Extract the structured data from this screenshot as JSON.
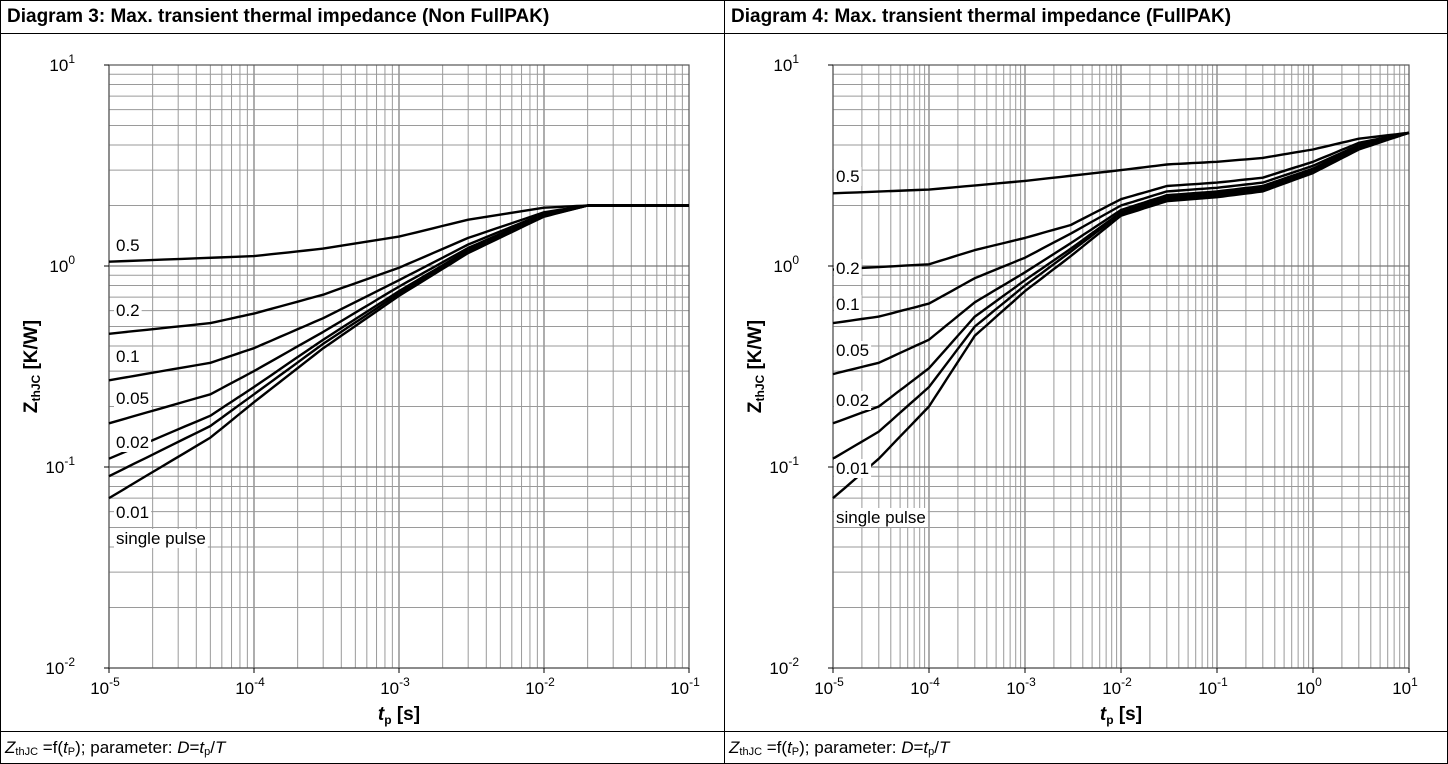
{
  "panels": [
    {
      "title": "Diagram 3: Max. transient thermal impedance (Non FullPAK)",
      "caption": {
        "prefix": "Z",
        "prefix_sub": "thJC",
        "middle": " =f(",
        "var": "t",
        "var_sub": "P",
        "after_var": "); parameter: ",
        "param": "D",
        "eq": "=",
        "num": "t",
        "num_sub": "p",
        "slash": "/",
        "den": "T"
      }
    },
    {
      "title": "Diagram 4: Max. transient thermal impedance (FullPAK)",
      "caption": {
        "prefix": "Z",
        "prefix_sub": "thJC",
        "middle": " =f(",
        "var": "t",
        "var_sub": "P",
        "after_var": "); parameter: ",
        "param": "D",
        "eq": "=",
        "num": "t",
        "num_sub": "p",
        "slash": "/",
        "den": "T"
      }
    }
  ],
  "chart_data": [
    {
      "type": "line",
      "title": "Diagram 3: Max. transient thermal impedance (Non FullPAK)",
      "xlabel": {
        "main": "t",
        "sub": "p",
        "unit": " [s]"
      },
      "ylabel": {
        "main": "Z",
        "sub": "thJC",
        "unit": " [K/W]"
      },
      "x_scale": "log",
      "y_scale": "log",
      "xlim": [
        1e-05,
        0.1
      ],
      "ylim": [
        0.01,
        10
      ],
      "x_ticks": [
        {
          "base": "10",
          "exp": "-5"
        },
        {
          "base": "10",
          "exp": "-4"
        },
        {
          "base": "10",
          "exp": "-3"
        },
        {
          "base": "10",
          "exp": "-2"
        },
        {
          "base": "10",
          "exp": "-1"
        }
      ],
      "y_ticks": [
        {
          "base": "10",
          "exp": "-2"
        },
        {
          "base": "10",
          "exp": "-1"
        },
        {
          "base": "10",
          "exp": "0"
        },
        {
          "base": "10",
          "exp": "1"
        }
      ],
      "grid": true,
      "series": [
        {
          "name": "0.5",
          "x": [
            1e-05,
            0.0001,
            0.0003,
            0.001,
            0.003,
            0.01,
            0.02,
            0.04,
            0.1
          ],
          "y": [
            1.05,
            1.12,
            1.22,
            1.4,
            1.7,
            1.95,
            2.0,
            2.0,
            2.0
          ]
        },
        {
          "name": "0.2",
          "x": [
            1e-05,
            5e-05,
            0.0001,
            0.0003,
            0.001,
            0.003,
            0.01,
            0.02,
            0.04,
            0.1
          ],
          "y": [
            0.46,
            0.52,
            0.58,
            0.72,
            0.98,
            1.38,
            1.85,
            2.0,
            2.0,
            2.0
          ]
        },
        {
          "name": "0.1",
          "x": [
            1e-05,
            5e-05,
            0.0001,
            0.0003,
            0.001,
            0.003,
            0.01,
            0.02,
            0.04,
            0.1
          ],
          "y": [
            0.27,
            0.33,
            0.39,
            0.55,
            0.85,
            1.28,
            1.82,
            2.0,
            2.0,
            2.0
          ]
        },
        {
          "name": "0.05",
          "x": [
            1e-05,
            5e-05,
            0.0001,
            0.0003,
            0.001,
            0.003,
            0.01,
            0.02,
            0.04,
            0.1
          ],
          "y": [
            0.165,
            0.23,
            0.3,
            0.47,
            0.79,
            1.23,
            1.8,
            2.0,
            2.0,
            2.0
          ]
        },
        {
          "name": "0.02",
          "x": [
            1e-05,
            5e-05,
            0.0001,
            0.0003,
            0.001,
            0.003,
            0.01,
            0.02,
            0.04,
            0.1
          ],
          "y": [
            0.11,
            0.18,
            0.25,
            0.43,
            0.75,
            1.2,
            1.78,
            2.0,
            2.0,
            2.0
          ]
        },
        {
          "name": "0.01",
          "x": [
            1e-05,
            5e-05,
            0.0001,
            0.0003,
            0.001,
            0.003,
            0.01,
            0.02,
            0.04,
            0.1
          ],
          "y": [
            0.09,
            0.16,
            0.23,
            0.41,
            0.73,
            1.18,
            1.77,
            2.0,
            2.0,
            2.0
          ]
        },
        {
          "name": "single pulse",
          "x": [
            1e-05,
            5e-05,
            0.0001,
            0.0003,
            0.001,
            0.003,
            0.01,
            0.02,
            0.04,
            0.1
          ],
          "y": [
            0.07,
            0.14,
            0.21,
            0.39,
            0.71,
            1.16,
            1.76,
            2.0,
            2.0,
            2.0
          ]
        }
      ],
      "annotations": [
        "0.5",
        "0.2",
        "0.1",
        "0.05",
        "0.02",
        "0.01",
        "single pulse"
      ]
    },
    {
      "type": "line",
      "title": "Diagram 4: Max. transient thermal impedance (FullPAK)",
      "xlabel": {
        "main": "t",
        "sub": "p",
        "unit": " [s]"
      },
      "ylabel": {
        "main": "Z",
        "sub": "thJC",
        "unit": " [K/W]"
      },
      "x_scale": "log",
      "y_scale": "log",
      "xlim": [
        1e-05,
        10
      ],
      "ylim": [
        0.01,
        10
      ],
      "x_ticks": [
        {
          "base": "10",
          "exp": "-5"
        },
        {
          "base": "10",
          "exp": "-4"
        },
        {
          "base": "10",
          "exp": "-3"
        },
        {
          "base": "10",
          "exp": "-2"
        },
        {
          "base": "10",
          "exp": "-1"
        },
        {
          "base": "10",
          "exp": "0"
        },
        {
          "base": "10",
          "exp": "1"
        }
      ],
      "y_ticks": [
        {
          "base": "10",
          "exp": "-2"
        },
        {
          "base": "10",
          "exp": "-1"
        },
        {
          "base": "10",
          "exp": "0"
        },
        {
          "base": "10",
          "exp": "1"
        }
      ],
      "grid": true,
      "series": [
        {
          "name": "0.5",
          "x": [
            1e-05,
            0.0001,
            0.001,
            0.01,
            0.03,
            0.1,
            0.3,
            1,
            3,
            10
          ],
          "y": [
            2.3,
            2.4,
            2.65,
            3.0,
            3.2,
            3.3,
            3.45,
            3.8,
            4.3,
            4.6
          ]
        },
        {
          "name": "0.2",
          "x": [
            1e-05,
            0.0001,
            0.0003,
            0.001,
            0.003,
            0.01,
            0.03,
            0.1,
            0.3,
            1,
            3,
            10
          ],
          "y": [
            0.96,
            1.02,
            1.2,
            1.38,
            1.6,
            2.15,
            2.5,
            2.6,
            2.75,
            3.3,
            4.1,
            4.6
          ]
        },
        {
          "name": "0.1",
          "x": [
            1e-05,
            3e-05,
            0.0001,
            0.0003,
            0.001,
            0.003,
            0.01,
            0.03,
            0.1,
            0.3,
            1,
            3,
            10
          ],
          "y": [
            0.52,
            0.56,
            0.65,
            0.87,
            1.1,
            1.45,
            2.0,
            2.35,
            2.45,
            2.6,
            3.15,
            4.0,
            4.6
          ]
        },
        {
          "name": "0.05",
          "x": [
            1e-05,
            3e-05,
            0.0001,
            0.0003,
            0.001,
            0.003,
            0.01,
            0.03,
            0.1,
            0.3,
            1,
            3,
            10
          ],
          "y": [
            0.29,
            0.33,
            0.43,
            0.66,
            0.93,
            1.3,
            1.9,
            2.25,
            2.35,
            2.5,
            3.05,
            3.95,
            4.6
          ]
        },
        {
          "name": "0.02",
          "x": [
            1e-05,
            3e-05,
            0.0001,
            0.0003,
            0.001,
            0.003,
            0.01,
            0.03,
            0.1,
            0.3,
            1,
            3,
            10
          ],
          "y": [
            0.165,
            0.2,
            0.31,
            0.56,
            0.85,
            1.22,
            1.85,
            2.2,
            2.3,
            2.45,
            3.0,
            3.9,
            4.6
          ]
        },
        {
          "name": "0.01",
          "x": [
            1e-05,
            3e-05,
            0.0001,
            0.0003,
            0.001,
            0.003,
            0.01,
            0.03,
            0.1,
            0.3,
            1,
            3,
            10
          ],
          "y": [
            0.11,
            0.15,
            0.25,
            0.5,
            0.8,
            1.18,
            1.82,
            2.15,
            2.25,
            2.4,
            2.95,
            3.85,
            4.6
          ]
        },
        {
          "name": "single pulse",
          "x": [
            1e-05,
            3e-05,
            0.0001,
            0.0003,
            0.001,
            0.003,
            0.01,
            0.03,
            0.1,
            0.3,
            1,
            3,
            10
          ],
          "y": [
            0.07,
            0.11,
            0.2,
            0.45,
            0.75,
            1.12,
            1.78,
            2.1,
            2.2,
            2.35,
            2.9,
            3.8,
            4.6
          ]
        }
      ],
      "annotations": [
        "0.5",
        "0.2",
        "0.1",
        "0.05",
        "0.02",
        "0.01",
        "single pulse"
      ]
    }
  ]
}
